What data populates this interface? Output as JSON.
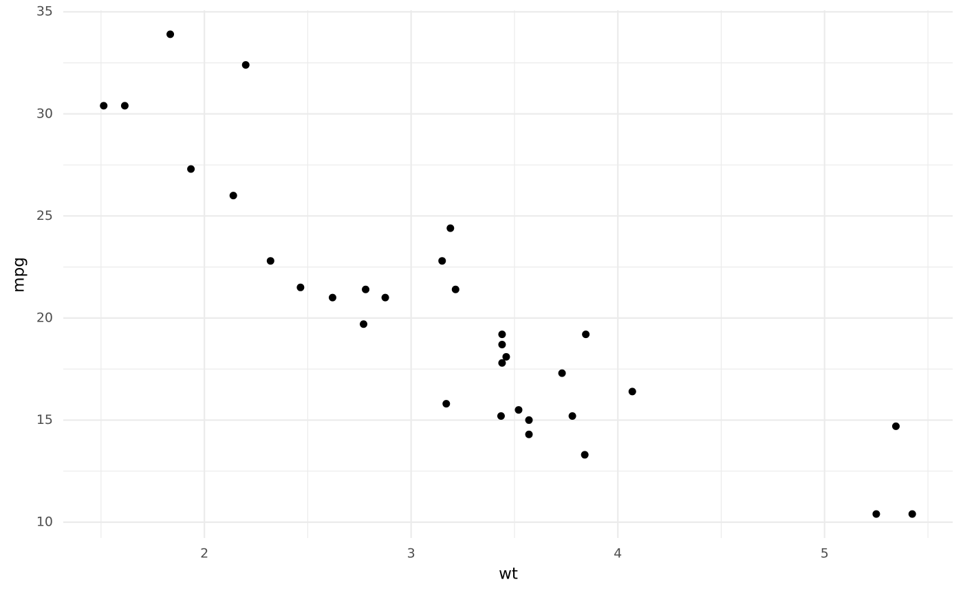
{
  "chart_data": {
    "type": "scatter",
    "x_label": "wt",
    "y_label": "mpg",
    "x": [
      2.62,
      2.875,
      2.32,
      3.215,
      3.44,
      3.46,
      3.57,
      3.19,
      3.15,
      3.44,
      3.44,
      4.07,
      3.73,
      3.78,
      5.25,
      5.424,
      5.345,
      2.2,
      1.615,
      1.835,
      2.465,
      3.52,
      3.435,
      3.84,
      3.845,
      1.935,
      2.14,
      1.513,
      3.17,
      2.77,
      3.57,
      2.78
    ],
    "values": [
      21.0,
      21.0,
      22.8,
      21.4,
      18.7,
      18.1,
      14.3,
      24.4,
      22.8,
      19.2,
      17.8,
      16.4,
      17.3,
      15.2,
      10.4,
      10.4,
      14.7,
      32.4,
      30.4,
      33.9,
      21.5,
      15.5,
      15.2,
      13.3,
      19.2,
      27.3,
      26.0,
      30.4,
      15.8,
      19.7,
      15.0,
      21.4
    ],
    "color": "#000000",
    "xlim": [
      1.3175,
      5.6196
    ],
    "ylim": [
      9.225,
      35.075
    ],
    "xticks": [
      2,
      3,
      4,
      5
    ],
    "yticks": [
      10,
      15,
      20,
      25,
      30,
      35
    ],
    "x_minor_grid": [
      1.5,
      2.5,
      3.5,
      4.5,
      5.5
    ],
    "y_minor_grid": [
      12.5,
      17.5,
      22.5,
      27.5,
      32.5
    ],
    "grid": true
  }
}
